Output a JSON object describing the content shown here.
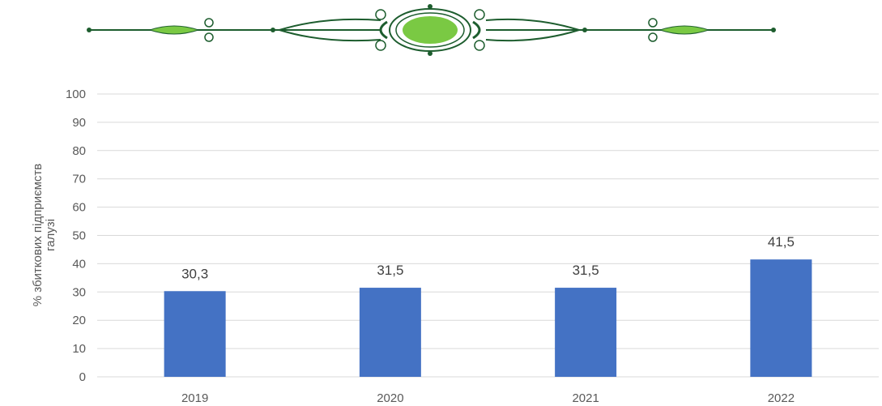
{
  "colors": {
    "bar": "#4472c4",
    "grid": "#d9d9d9",
    "ornament_dark": "#1d5d2e",
    "ornament_light": "#7ac943"
  },
  "ornament": {
    "icon": "decorative-vine-ornament-icon"
  },
  "chart_data": {
    "type": "bar",
    "categories": [
      "2019",
      "2020",
      "2021",
      "2022"
    ],
    "values": [
      30.3,
      31.5,
      31.5,
      41.5
    ],
    "value_labels": [
      "30,3",
      "31,5",
      "31,5",
      "41,5"
    ],
    "title": "",
    "xlabel": "",
    "ylabel_lines": [
      "% збиткових підприємств",
      "галузі"
    ],
    "ylim": [
      0,
      100
    ],
    "yticks": [
      0,
      10,
      20,
      30,
      40,
      50,
      60,
      70,
      80,
      90,
      100
    ],
    "grid": true,
    "legend": "none"
  }
}
